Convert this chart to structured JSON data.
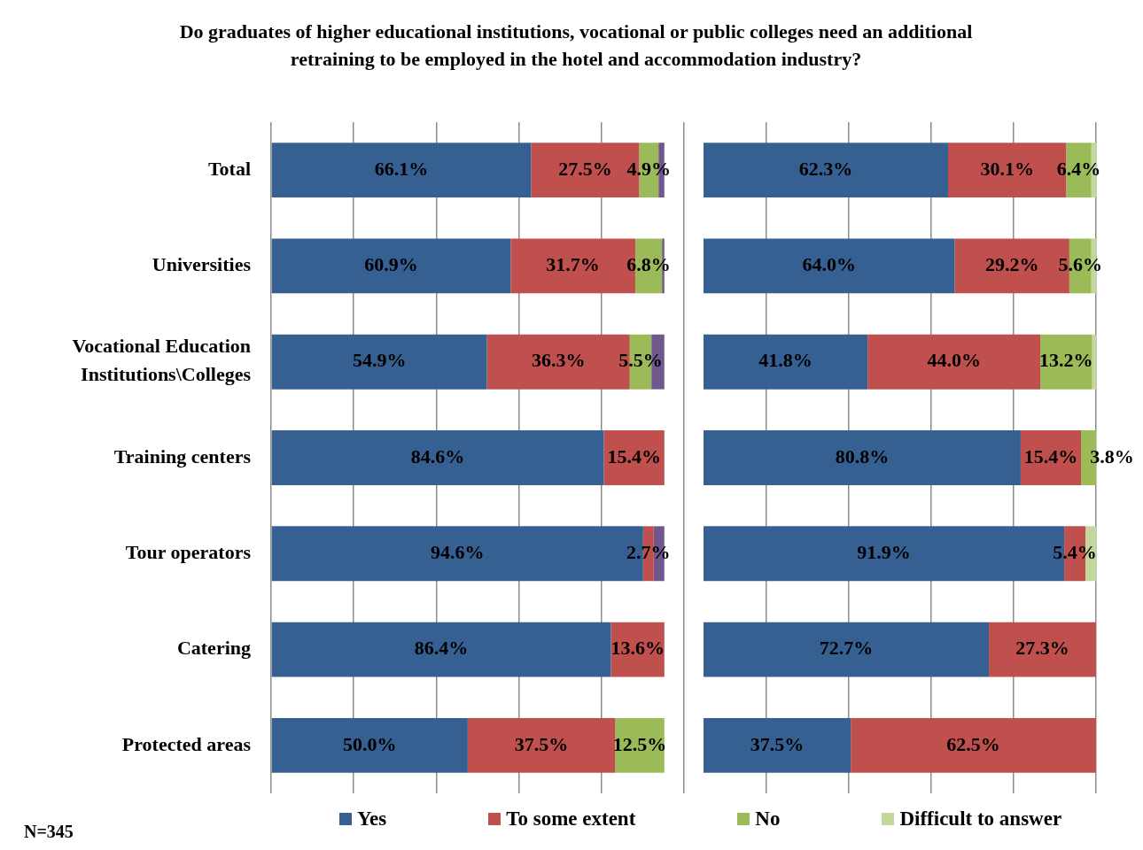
{
  "chart_data": [
    {
      "type": "bar",
      "orientation": "horizontal",
      "stacked": true,
      "title": "Do graduates of higher educational institutions, vocational or public colleges need an additional retraining to be employed in the hotel and accommodation industry?",
      "annotations": [
        "N=345"
      ],
      "categories": [
        "Total",
        "Universities",
        "Vocational Education Institutions\\Colleges",
        "Training centers",
        "Tour operators",
        "Catering",
        "Protected areas"
      ],
      "series": [
        {
          "name": "Yes",
          "color": "#376092",
          "values": [
            66.1,
            60.9,
            54.9,
            84.6,
            94.6,
            86.4,
            50.0
          ],
          "value_labels": [
            "66.1%",
            "60.9%",
            "54.9%",
            "84.6%",
            "94.6%",
            "86.4%",
            "50.0%"
          ]
        },
        {
          "name": "To some extent",
          "color": "#c0504d",
          "values": [
            27.5,
            31.7,
            36.3,
            15.4,
            2.7,
            13.6,
            37.5
          ],
          "value_labels": [
            "27.5%",
            "31.7%",
            "36.3%",
            "15.4%",
            "2.7%",
            "13.6%",
            "37.5%"
          ]
        },
        {
          "name": "No",
          "color": "#9bbb59",
          "values": [
            4.9,
            6.8,
            5.5,
            null,
            null,
            null,
            12.5
          ],
          "value_labels": [
            "4.9%",
            "6.8%",
            "5.5%",
            null,
            null,
            null,
            "12.5%"
          ]
        },
        {
          "color": "#70588f",
          "values": [
            1.5,
            0.6,
            3.3,
            null,
            2.7,
            null,
            null
          ]
        }
      ],
      "xlim": [
        0,
        105
      ],
      "xticks": [
        {
          "value": 0,
          "label": null
        },
        {
          "value": 21,
          "label": null
        },
        {
          "value": 42,
          "label": null
        },
        {
          "value": 63,
          "label": null
        },
        {
          "value": 84,
          "label": null
        },
        {
          "value": 105,
          "label": null
        }
      ],
      "grid": "x",
      "tick_labels": "y",
      "legend": "bottom"
    },
    {
      "type": "bar",
      "orientation": "horizontal",
      "stacked": true,
      "categories": [
        null,
        null,
        null,
        null,
        null,
        null,
        null
      ],
      "series": [
        {
          "name": "Yes",
          "color": "#376092",
          "values": [
            62.3,
            64.0,
            41.8,
            80.8,
            91.9,
            72.7,
            37.5
          ],
          "value_labels": [
            "62.3%",
            "64.0%",
            "41.8%",
            "80.8%",
            "91.9%",
            "72.7%",
            "37.5%"
          ]
        },
        {
          "name": "To some extent",
          "color": "#c0504d",
          "values": [
            30.1,
            29.2,
            44.0,
            15.4,
            5.4,
            27.3,
            62.5
          ],
          "value_labels": [
            "30.1%",
            "29.2%",
            "44.0%",
            "15.4%",
            "5.4%",
            "27.3%",
            "62.5%"
          ]
        },
        {
          "name": "No",
          "color": "#9bbb59",
          "values": [
            6.4,
            5.6,
            13.2,
            3.8,
            null,
            null,
            null
          ],
          "value_labels": [
            "6.4%",
            "5.6%",
            "13.2%",
            "3.8%",
            null,
            null,
            null
          ]
        },
        {
          "name": "Difficult to answer",
          "color": "#c3d69b",
          "values": [
            1.2,
            1.2,
            1.0,
            null,
            2.7,
            null,
            null
          ]
        }
      ],
      "xlim": [
        0,
        100
      ],
      "xticks": [
        {
          "value": 16,
          "label": null
        },
        {
          "value": 37,
          "label": null
        },
        {
          "value": 58,
          "label": null
        },
        {
          "value": 79,
          "label": null
        },
        {
          "value": 100,
          "label": null
        }
      ],
      "grid": "x",
      "tick_labels": false,
      "legend": "bottom"
    }
  ]
}
